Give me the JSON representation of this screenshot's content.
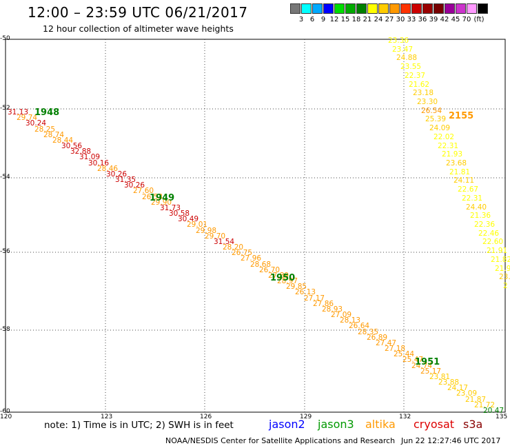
{
  "header": {
    "title": "12:00 – 23:59 UTC 06/21/2017",
    "subtitle": "12 hour collection of altimeter wave heights"
  },
  "legend": {
    "colors": [
      "#777777",
      "#00ffff",
      "#00aaff",
      "#0000ff",
      "#00dd00",
      "#00aa00",
      "#008000",
      "#ffff00",
      "#ffcc00",
      "#ff9900",
      "#ff3300",
      "#cc0000",
      "#990000",
      "#770000",
      "#990099",
      "#cc33cc",
      "#ff99ff",
      "#000000"
    ],
    "ticks": [
      "3",
      "6",
      "9",
      "12",
      "15",
      "18",
      "21",
      "24",
      "27",
      "30",
      "33",
      "36",
      "39",
      "42",
      "45",
      "70"
    ],
    "unit": "(ft)"
  },
  "axes": {
    "y_ticks": [
      "-50",
      "-52",
      "-54",
      "-56",
      "-58",
      "-60"
    ],
    "x_ticks": [
      "120",
      "123",
      "126",
      "129",
      "132",
      "135"
    ],
    "lon_range": [
      120,
      135
    ],
    "lat_range": [
      -60,
      -50
    ]
  },
  "passes": [
    {
      "label": "1948",
      "color": "#008000"
    },
    {
      "label": "1949",
      "color": "#008000"
    },
    {
      "label": "1950",
      "color": "#008000"
    },
    {
      "label": "1951",
      "color": "#008000"
    },
    {
      "label": "2155",
      "color": "#ff9900"
    }
  ],
  "track_values": {
    "track_a": [
      "31.13",
      "29.74",
      "30.24",
      "28.25",
      "28.74",
      "28.44",
      "30.56",
      "32.88",
      "31.09",
      "30.16",
      "28.46",
      "30.26",
      "31.35",
      "30.26",
      "27.60",
      "26.53",
      "29.90",
      "31.73",
      "30.58",
      "30.49",
      "29.01",
      "29.98",
      "29.70",
      "31.54",
      "28.20",
      "26.75",
      "27.96",
      "28.68",
      "26.70",
      "27.89",
      "28.97",
      "29.85",
      "26.13",
      "27.17",
      "27.86",
      "28.93",
      "27.09",
      "28.13",
      "26.64",
      "28.35",
      "26.89",
      "27.47",
      "27.18",
      "25.44",
      "25.47",
      "24.74",
      "25.17",
      "23.81",
      "23.88",
      "24.17",
      "23.09",
      "21.87",
      "21.72",
      "20.47"
    ],
    "track_a_colors": [
      "#cc0000",
      "#ff9900",
      "#cc0000",
      "#ff9900",
      "#ff9900",
      "#ff9900",
      "#cc0000",
      "#cc0000",
      "#cc0000",
      "#cc0000",
      "#ff9900",
      "#cc0000",
      "#cc0000",
      "#cc0000",
      "#ff9900",
      "#ff9900",
      "#ff9900",
      "#cc0000",
      "#cc0000",
      "#cc0000",
      "#ff9900",
      "#ff9900",
      "#ff9900",
      "#cc0000",
      "#ff9900",
      "#ff9900",
      "#ff9900",
      "#ff9900",
      "#ff9900",
      "#ff9900",
      "#ff9900",
      "#ff9900",
      "#ff9900",
      "#ff9900",
      "#ff9900",
      "#ff9900",
      "#ff9900",
      "#ff9900",
      "#ff9900",
      "#ff9900",
      "#ff9900",
      "#ff9900",
      "#ff9900",
      "#ff9900",
      "#ff9900",
      "#ff9900",
      "#ff9900",
      "#ffcc00",
      "#ffcc00",
      "#ffcc00",
      "#ffcc00",
      "#ffcc00",
      "#ffcc00",
      "#008000"
    ],
    "track_b": [
      "23.36",
      "23.47",
      "24.88",
      "23.55",
      "22.37",
      "21.62",
      "23.18",
      "23.30",
      "26.54",
      "25.39",
      "24.09",
      "22.02",
      "22.31",
      "21.93",
      "23.68",
      "21.81",
      "24.11",
      "22.67",
      "22.31",
      "24.40",
      "21.36",
      "22.36",
      "22.46",
      "22.60",
      "21.91",
      "21.82",
      "21.9",
      "23.5",
      "2"
    ],
    "track_b_colors": [
      "#ffff00",
      "#ffff00",
      "#ffcc00",
      "#ffff00",
      "#ffff00",
      "#ffff00",
      "#ffcc00",
      "#ffcc00",
      "#ff9900",
      "#ffcc00",
      "#ffcc00",
      "#ffff00",
      "#ffff00",
      "#ffff00",
      "#ffcc00",
      "#ffff00",
      "#ffcc00",
      "#ffff00",
      "#ffff00",
      "#ffcc00",
      "#ffff00",
      "#ffff00",
      "#ffff00",
      "#ffff00",
      "#ffff00",
      "#ffff00",
      "#ffff00",
      "#ffcc00",
      "#ffff00"
    ]
  },
  "footer": {
    "note": "note:  1) Time is in UTC;  2) SWH is in feet",
    "missions": [
      {
        "name": "jason2",
        "color": "#0000ff"
      },
      {
        "name": "jason3",
        "color": "#009900"
      },
      {
        "name": "altika",
        "color": "#ff9900"
      },
      {
        "name": "cryosat",
        "color": "#dd0000"
      },
      {
        "name": "s3a",
        "color": "#880000"
      }
    ],
    "credit": "NOAA/NESDIS Center for Satellite Applications and Research",
    "timestamp": "Jun 22 12:27:46 UTC 2017"
  }
}
